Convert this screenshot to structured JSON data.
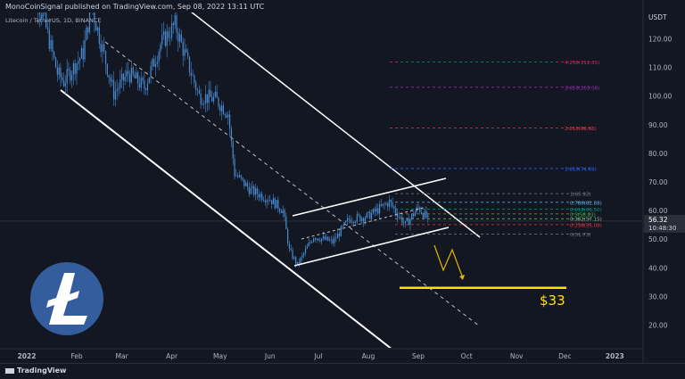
{
  "header": {
    "published": "MonoCoinSignal published on TradingView.com, Sep 08, 2022 13:11 UTC",
    "symbol": "Litecoin / TetherUS, 1D, BINANCE"
  },
  "footer": {
    "brand": "TradingView"
  },
  "price_axis": {
    "currency": "USDT",
    "current_price": "56.32",
    "countdown": "10:48:30"
  },
  "annotations": {
    "target_label": "$33"
  },
  "colors": {
    "bg": "#131722",
    "candle": "#4a8bd1",
    "channel": "#ffffff",
    "target": "#ffe400",
    "arrow": "#e8b400",
    "logo": "#345d9d"
  },
  "icons": [
    "litecoin-logo-icon",
    "tradingview-logo-icon"
  ],
  "chart_data": {
    "type": "candlestick",
    "title": "Litecoin / TetherUS, 1D, BINANCE",
    "x_ticks": [
      "2022",
      "Feb",
      "Mar",
      "Apr",
      "May",
      "Jun",
      "Jul",
      "Aug",
      "Sep",
      "Oct",
      "Nov",
      "Dec",
      "2023"
    ],
    "y_ticks": [
      "120.00",
      "110.00",
      "100.00",
      "90.00",
      "80.00",
      "70.00",
      "60.00",
      "50.00",
      "40.00",
      "30.00",
      "20.00"
    ],
    "y_tick_values": [
      120,
      110,
      100,
      90,
      80,
      70,
      60,
      50,
      40,
      30,
      20
    ],
    "ylim": [
      13,
      127
    ],
    "price_path": [
      [
        "2022-01-01",
        145
      ],
      [
        "2022-01-12",
        126
      ],
      [
        "2022-01-20",
        108
      ],
      [
        "2022-01-24",
        105
      ],
      [
        "2022-02-05",
        115
      ],
      [
        "2022-02-10",
        132
      ],
      [
        "2022-02-24",
        101
      ],
      [
        "2022-03-05",
        108
      ],
      [
        "2022-03-15",
        103
      ],
      [
        "2022-03-25",
        118
      ],
      [
        "2022-04-03",
        125
      ],
      [
        "2022-04-10",
        113
      ],
      [
        "2022-04-18",
        100
      ],
      [
        "2022-04-28",
        99
      ],
      [
        "2022-05-06",
        94
      ],
      [
        "2022-05-10",
        73
      ],
      [
        "2022-05-20",
        67
      ],
      [
        "2022-06-01",
        64
      ],
      [
        "2022-06-09",
        60
      ],
      [
        "2022-06-13",
        46
      ],
      [
        "2022-06-18",
        41
      ],
      [
        "2022-06-28",
        51
      ],
      [
        "2022-07-10",
        49
      ],
      [
        "2022-07-20",
        57
      ],
      [
        "2022-08-01",
        58
      ],
      [
        "2022-08-14",
        63
      ],
      [
        "2022-08-24",
        55
      ],
      [
        "2022-09-01",
        61
      ],
      [
        "2022-09-08",
        56.3
      ]
    ],
    "fibonacci": [
      {
        "label": "0(51.73)",
        "value": 51.73,
        "color": "#787b86"
      },
      {
        "label": "0.236(55.09)",
        "value": 55.09,
        "color": "#f23645"
      },
      {
        "label": "0.382(57.15)",
        "value": 57.15,
        "color": "#81c784"
      },
      {
        "label": "0.5(58.83)",
        "value": 58.83,
        "color": "#4caf50"
      },
      {
        "label": "0.618(60.50)",
        "value": 60.5,
        "color": "#089981"
      },
      {
        "label": "0.786(62.88)",
        "value": 62.88,
        "color": "#64b5f6"
      },
      {
        "label": "1(65.92)",
        "value": 65.92,
        "color": "#787b86"
      },
      {
        "label": "1.618(74.69)",
        "value": 74.69,
        "color": "#2962ff"
      },
      {
        "label": "2.618(88.88)",
        "value": 88.88,
        "color": "#f23645"
      },
      {
        "label": "3.618(103.08)",
        "value": 103.08,
        "color": "#9c27b0"
      },
      {
        "label": "4.236(111.85)",
        "value": 111.85,
        "color": "#e91e63"
      }
    ],
    "target_price": 33,
    "current_price": 56.32
  }
}
